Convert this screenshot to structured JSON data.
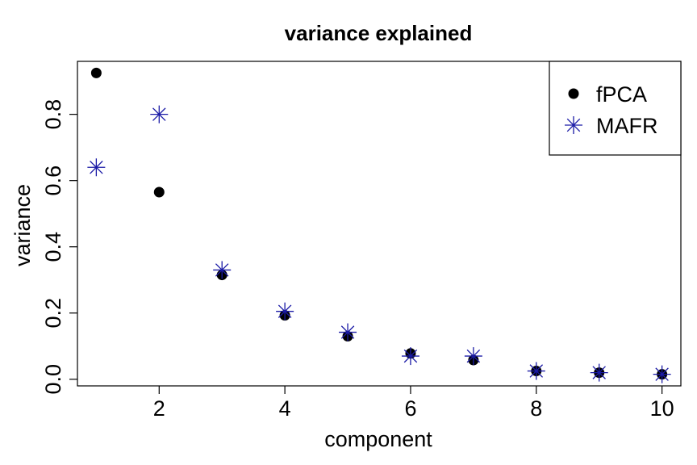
{
  "chart_data": {
    "type": "scatter",
    "title": "variance explained",
    "xlabel": "component",
    "ylabel": "variance",
    "xlim": [
      0.7,
      10.3
    ],
    "ylim": [
      -0.02,
      0.96
    ],
    "x_ticks": [
      2,
      4,
      6,
      8,
      10
    ],
    "y_ticks": [
      0.0,
      0.2,
      0.4,
      0.6,
      0.8
    ],
    "x_tick_labels": [
      "2",
      "4",
      "6",
      "8",
      "10"
    ],
    "y_tick_labels": [
      "0.0",
      "0.2",
      "0.4",
      "0.6",
      "0.8"
    ],
    "grid": false,
    "legend_position": "top-right",
    "series": [
      {
        "name": "fPCA",
        "marker": "filled-circle",
        "color": "#000000",
        "x": [
          1,
          2,
          3,
          4,
          5,
          6,
          7,
          8,
          9,
          10
        ],
        "y": [
          0.925,
          0.565,
          0.315,
          0.193,
          0.13,
          0.078,
          0.058,
          0.025,
          0.02,
          0.015
        ]
      },
      {
        "name": "MAFR",
        "marker": "asterisk",
        "color": "#1a1aa6",
        "x": [
          1,
          2,
          3,
          4,
          5,
          6,
          7,
          8,
          9,
          10
        ],
        "y": [
          0.64,
          0.8,
          0.33,
          0.205,
          0.142,
          0.07,
          0.07,
          0.025,
          0.02,
          0.015
        ]
      }
    ]
  }
}
